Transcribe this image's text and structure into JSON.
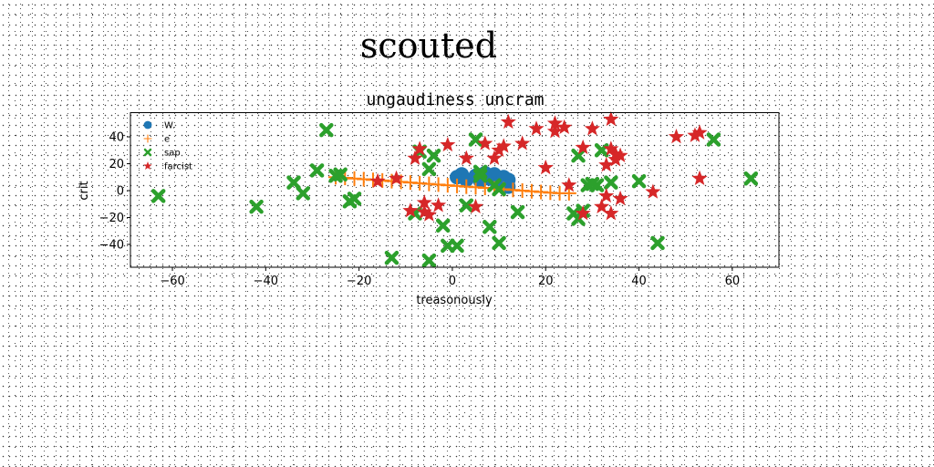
{
  "suptitle": "scouted",
  "chart_data": {
    "type": "scatter",
    "title": "ungaudiness uncram",
    "xlabel": "treasonously",
    "ylabel": "crit",
    "xlim": [
      -69,
      70
    ],
    "ylim": [
      -57,
      58
    ],
    "xticks": [
      -60,
      -40,
      -20,
      0,
      20,
      40,
      60
    ],
    "yticks": [
      -40,
      -20,
      0,
      20,
      40
    ],
    "grid": false,
    "legend_position": "top-left",
    "series": [
      {
        "name": "W.",
        "marker": "circle",
        "color": "#1f77b4",
        "x": [
          1,
          2,
          3,
          5,
          6,
          7,
          8,
          9,
          10,
          11,
          12,
          12
        ],
        "y": [
          10,
          12,
          8,
          11,
          7,
          13,
          9,
          12,
          6,
          10,
          8,
          3
        ]
      },
      {
        "name": "e",
        "marker": "plus",
        "color": "#ff7f0e",
        "x": [
          -25,
          -23,
          -21,
          -19,
          -17,
          -15,
          -13,
          -11,
          -9,
          -7,
          -5,
          -3,
          -1,
          1,
          3,
          5,
          7,
          9,
          11,
          13,
          15,
          17,
          19,
          21,
          23,
          25
        ],
        "y": [
          10,
          9.5,
          9,
          8.5,
          8,
          7.5,
          7,
          6.5,
          6,
          5.5,
          5,
          4.5,
          4,
          3.5,
          3,
          2.5,
          2,
          1.5,
          1,
          0.5,
          0,
          -0.5,
          -1,
          -1.5,
          -2,
          -2
        ]
      },
      {
        "name": "sap",
        "marker": "x",
        "color": "#2ca02c",
        "x": [
          -63,
          -42,
          -34,
          -32,
          -29,
          -27,
          -25,
          -24,
          -22,
          -21,
          -13,
          -8,
          -7,
          -5,
          -5,
          -4,
          -2,
          -1,
          1,
          3,
          5,
          6,
          6,
          8,
          9,
          10,
          10,
          14,
          26,
          27,
          27,
          28,
          29,
          30,
          31,
          32,
          34,
          40,
          44,
          56,
          64
        ],
        "y": [
          -4,
          -12,
          6,
          -2,
          15,
          45,
          11,
          12,
          -8,
          -6,
          -50,
          -17,
          29,
          -52,
          16,
          26,
          -26,
          -41,
          -41,
          -11,
          38,
          14,
          11,
          -27,
          4,
          1,
          -39,
          -16,
          -17,
          -21,
          26,
          -15,
          4,
          5,
          4,
          30,
          6,
          7,
          -39,
          38,
          9
        ]
      },
      {
        "name": "farcist",
        "marker": "star",
        "color": "#d62728",
        "x": [
          -16,
          -12,
          -9,
          -8,
          -7,
          -6,
          -6,
          -5,
          -3,
          -1,
          3,
          5,
          7,
          9,
          10,
          11,
          12,
          15,
          18,
          20,
          22,
          22,
          24,
          25,
          28,
          28,
          30,
          32,
          33,
          33,
          34,
          34,
          34,
          35,
          35,
          36,
          36,
          43,
          48,
          52,
          53,
          53
        ],
        "y": [
          7,
          9,
          -15,
          24,
          31,
          -16,
          -9,
          -18,
          -11,
          34,
          24,
          -12,
          35,
          24,
          30,
          33,
          51,
          35,
          46,
          17,
          44,
          50,
          47,
          4,
          -17,
          32,
          46,
          -12,
          19,
          -4,
          53,
          31,
          -17,
          23,
          27,
          -6,
          26,
          -1,
          40,
          41,
          43,
          9
        ]
      }
    ]
  }
}
